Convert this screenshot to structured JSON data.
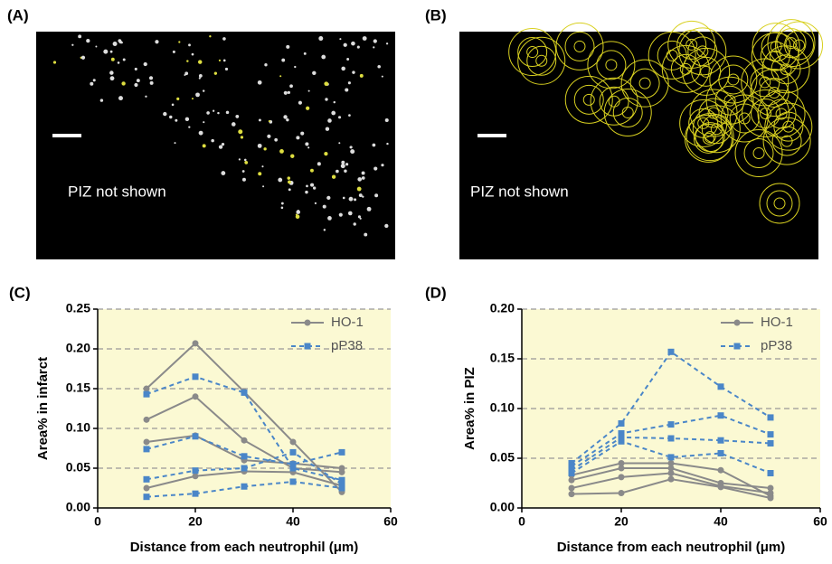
{
  "panels": [
    {
      "label": "(A)",
      "annotation": "PIZ not shown"
    },
    {
      "label": "(B)",
      "annotation": "PIZ not shown"
    }
  ],
  "chart_data": [
    {
      "type": "line",
      "label": "(C)",
      "ylabel": "Area% in infarct",
      "xlabel": "Distance from each neutrophil (μm)",
      "x": [
        10,
        20,
        30,
        40,
        50
      ],
      "series": [
        {
          "name": "HO-1",
          "color": "#8a8a8a",
          "linestyle": "solid",
          "marker": "circle",
          "values": [
            [
              0.15,
              0.207,
              0.146,
              0.083,
              0.02
            ],
            [
              0.111,
              0.14,
              0.085,
              0.05,
              0.045
            ],
            [
              0.083,
              0.091,
              0.06,
              0.056,
              0.05
            ],
            [
              0.025,
              0.04,
              0.046,
              0.045,
              0.028
            ]
          ]
        },
        {
          "name": "pP38",
          "color": "#4a86c8",
          "linestyle": "dashed",
          "marker": "square",
          "values": [
            [
              0.143,
              0.165,
              0.145,
              0.05,
              0.035
            ],
            [
              0.074,
              0.09,
              0.065,
              0.055,
              0.07
            ],
            [
              0.036,
              0.047,
              0.05,
              0.07,
              0.03
            ],
            [
              0.014,
              0.018,
              0.027,
              0.033,
              0.025
            ]
          ]
        }
      ],
      "xlim": [
        0,
        60
      ],
      "xticks": [
        0,
        20,
        40,
        60
      ],
      "ylim": [
        0,
        0.25
      ],
      "yticks": [
        {
          "value": 0,
          "label": "0.00"
        },
        {
          "value": 0.05,
          "label": "0.05"
        },
        {
          "value": 0.1,
          "label": "0.10"
        },
        {
          "value": 0.15,
          "label": "0.15"
        },
        {
          "value": 0.2,
          "label": "0.20"
        },
        {
          "value": 0.25,
          "label": "0.25"
        }
      ],
      "grid": true,
      "legend": "upper right",
      "background": "#fbf9d3"
    },
    {
      "type": "line",
      "label": "(D)",
      "ylabel": "Area% in PIZ",
      "xlabel": "Distance from each neutrophil (μm)",
      "x": [
        10,
        20,
        30,
        40,
        50
      ],
      "series": [
        {
          "name": "HO-1",
          "color": "#8a8a8a",
          "linestyle": "solid",
          "marker": "circle",
          "values": [
            [
              0.033,
              0.045,
              0.045,
              0.038,
              0.012
            ],
            [
              0.028,
              0.04,
              0.04,
              0.025,
              0.02
            ],
            [
              0.02,
              0.031,
              0.035,
              0.022,
              0.015
            ],
            [
              0.014,
              0.015,
              0.029,
              0.021,
              0.01
            ]
          ]
        },
        {
          "name": "pP38",
          "color": "#4a86c8",
          "linestyle": "dashed",
          "marker": "square",
          "values": [
            [
              0.045,
              0.085,
              0.157,
              0.122,
              0.091
            ],
            [
              0.042,
              0.075,
              0.084,
              0.093,
              0.074
            ],
            [
              0.038,
              0.071,
              0.07,
              0.068,
              0.065
            ],
            [
              0.035,
              0.067,
              0.051,
              0.055,
              0.035
            ]
          ]
        }
      ],
      "xlim": [
        0,
        60
      ],
      "xticks": [
        0,
        20,
        40,
        60
      ],
      "ylim": [
        0,
        0.2
      ],
      "yticks": [
        {
          "value": 0,
          "label": "0.00"
        },
        {
          "value": 0.05,
          "label": "0.05"
        },
        {
          "value": 0.1,
          "label": "0.10"
        },
        {
          "value": 0.15,
          "label": "0.15"
        },
        {
          "value": 0.2,
          "label": "0.20"
        }
      ],
      "grid": true,
      "legend": "upper right",
      "background": "#fbf9d3"
    }
  ]
}
